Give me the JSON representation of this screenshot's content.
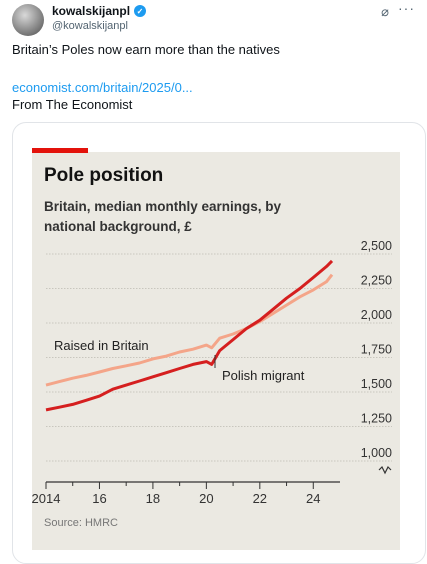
{
  "tweet": {
    "display_name": "kowalskijanpl",
    "handle": "@kowalskijanpl",
    "text": "Britain’s Poles now earn more than the natives",
    "link": "economist.com/britain/2025/0...",
    "from": "From The Economist",
    "grok_icon": "slash-icon",
    "more_icon": "ellipsis-icon"
  },
  "colors": {
    "accent": "#e3120b",
    "britain": "#f4a589",
    "polish": "#d51f1f",
    "link": "#1d9bf0"
  },
  "chart_data": {
    "type": "line",
    "title": "Pole position",
    "subtitle": "Britain, median monthly earnings, by national background, £",
    "source": "Source: HMRC",
    "xlim": [
      2014,
      2025
    ],
    "ylim": [
      1000,
      2500
    ],
    "xticks": [
      "2014",
      "16",
      "18",
      "20",
      "22",
      "24"
    ],
    "xtick_values": [
      2014,
      2016,
      2018,
      2020,
      2022,
      2024
    ],
    "yticks": [
      "2,500",
      "2,250",
      "2,000",
      "1,750",
      "1,500",
      "1,250",
      "1,000"
    ],
    "ytick_values": [
      2500,
      2250,
      2000,
      1750,
      1500,
      1250,
      1000
    ],
    "series": [
      {
        "name": "Raised in Britain",
        "x": [
          2014.0,
          2014.5,
          2015.0,
          2015.5,
          2016.0,
          2016.5,
          2017.0,
          2017.5,
          2018.0,
          2018.5,
          2019.0,
          2019.5,
          2020.0,
          2020.2,
          2020.5,
          2021.0,
          2021.5,
          2022.0,
          2022.5,
          2023.0,
          2023.5,
          2024.0,
          2024.5,
          2024.7
        ],
        "y": [
          1550,
          1575,
          1600,
          1620,
          1645,
          1670,
          1690,
          1710,
          1740,
          1760,
          1790,
          1810,
          1840,
          1820,
          1890,
          1920,
          1960,
          2010,
          2070,
          2130,
          2190,
          2240,
          2300,
          2350
        ]
      },
      {
        "name": "Polish migrant",
        "x": [
          2014.0,
          2014.5,
          2015.0,
          2015.5,
          2016.0,
          2016.5,
          2017.0,
          2017.5,
          2018.0,
          2018.5,
          2019.0,
          2019.5,
          2020.0,
          2020.2,
          2020.5,
          2021.0,
          2021.5,
          2022.0,
          2022.5,
          2023.0,
          2023.5,
          2024.0,
          2024.5,
          2024.7
        ],
        "y": [
          1370,
          1390,
          1410,
          1440,
          1470,
          1520,
          1550,
          1580,
          1610,
          1640,
          1670,
          1700,
          1720,
          1700,
          1800,
          1880,
          1960,
          2020,
          2100,
          2180,
          2250,
          2330,
          2410,
          2450
        ]
      }
    ],
    "grid": true
  }
}
